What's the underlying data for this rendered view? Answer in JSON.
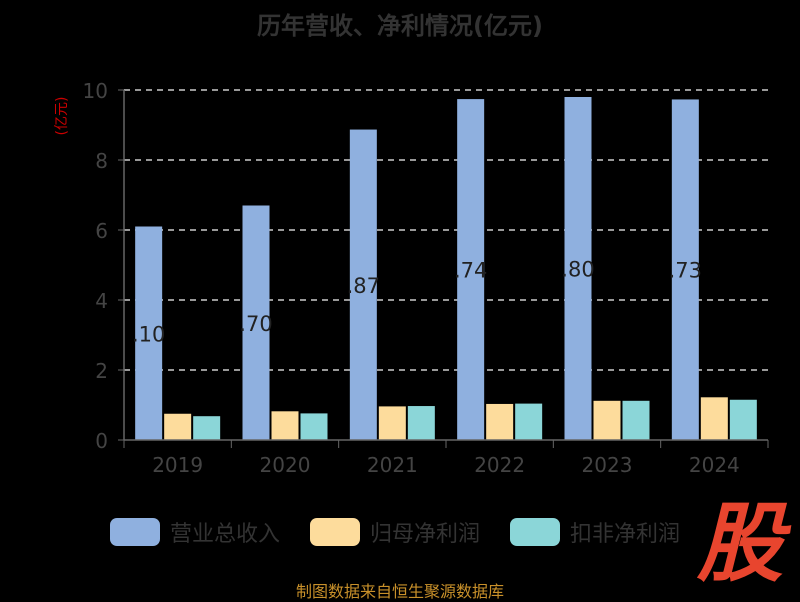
{
  "chart_data": {
    "type": "bar",
    "title": "历年营收、净利情况(亿元)",
    "ylabel": "(亿元)",
    "xlabel": "",
    "ylim": [
      0,
      10
    ],
    "yticks": [
      0,
      2,
      4,
      6,
      8,
      10
    ],
    "grid": true,
    "legend_position": "bottom",
    "categories": [
      "2019",
      "2020",
      "2021",
      "2022",
      "2023",
      "2024"
    ],
    "series": [
      {
        "name": "营业总收入",
        "color": "#8fb0df",
        "values": [
          6.1,
          6.7,
          8.87,
          9.74,
          9.8,
          9.73
        ],
        "data_labels": [
          ".10",
          ".70",
          ".87",
          ".74",
          ".80",
          ".73"
        ]
      },
      {
        "name": "归母净利润",
        "color": "#fddc9c",
        "values": [
          0.75,
          0.82,
          0.96,
          1.03,
          1.12,
          1.22
        ]
      },
      {
        "name": "扣非净利润",
        "color": "#8bd6d8",
        "values": [
          0.68,
          0.76,
          0.97,
          1.04,
          1.12,
          1.15
        ]
      }
    ]
  },
  "footer": {
    "source": "制图数据来自恒生聚源数据库"
  },
  "watermark": {
    "text": "股"
  }
}
